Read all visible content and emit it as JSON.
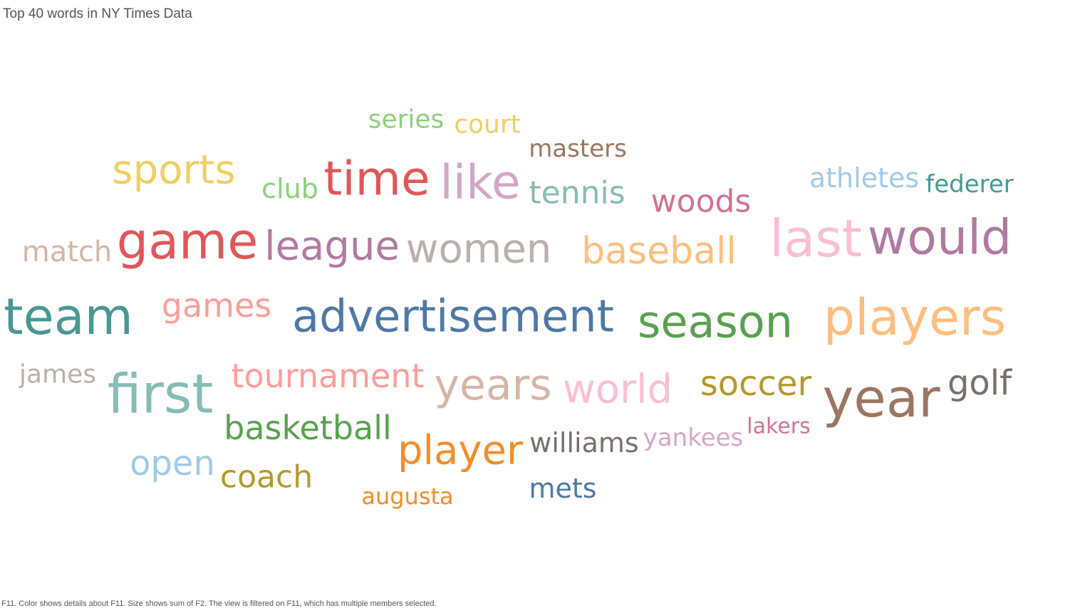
{
  "title": "Top 40 words in NY Times Data",
  "caption": "F11.  Color shows details about F11.  Size shows sum of F2. The view is filtered on F11, which has multiple members selected.",
  "chart_data": {
    "type": "wordcloud",
    "words": [
      {
        "text": "series",
        "size": 36,
        "color": "#8cd17d"
      },
      {
        "text": "court",
        "size": 36,
        "color": "#f1ce63"
      },
      {
        "text": "masters",
        "size": 34,
        "color": "#9d7660"
      },
      {
        "text": "sports",
        "size": 56,
        "color": "#f1ce63"
      },
      {
        "text": "club",
        "size": 38,
        "color": "#8cd17d"
      },
      {
        "text": "time",
        "size": 66,
        "color": "#e15759"
      },
      {
        "text": "like",
        "size": 66,
        "color": "#d4a6c8"
      },
      {
        "text": "tennis",
        "size": 44,
        "color": "#86bcb6"
      },
      {
        "text": "athletes",
        "size": 38,
        "color": "#a0cbe8"
      },
      {
        "text": "federer",
        "size": 34,
        "color": "#499894"
      },
      {
        "text": "woods",
        "size": 44,
        "color": "#d37295"
      },
      {
        "text": "match",
        "size": 40,
        "color": "#d7b5a6"
      },
      {
        "text": "game",
        "size": 70,
        "color": "#e15759"
      },
      {
        "text": "league",
        "size": 56,
        "color": "#b07aa1"
      },
      {
        "text": "women",
        "size": 56,
        "color": "#bab0ac"
      },
      {
        "text": "baseball",
        "size": 52,
        "color": "#ffbe7d"
      },
      {
        "text": "last",
        "size": 72,
        "color": "#fabfd2"
      },
      {
        "text": "would",
        "size": 68,
        "color": "#b07aa1"
      },
      {
        "text": "team",
        "size": 70,
        "color": "#499894"
      },
      {
        "text": "games",
        "size": 46,
        "color": "#ff9d9a"
      },
      {
        "text": "advertisement",
        "size": 62,
        "color": "#4e79a7"
      },
      {
        "text": "season",
        "size": 62,
        "color": "#59a14f"
      },
      {
        "text": "players",
        "size": 70,
        "color": "#ffbe7d"
      },
      {
        "text": "james",
        "size": 36,
        "color": "#bab0ac"
      },
      {
        "text": "first",
        "size": 76,
        "color": "#86bcb6"
      },
      {
        "text": "tournament",
        "size": 46,
        "color": "#ff9d9a"
      },
      {
        "text": "years",
        "size": 60,
        "color": "#d7b5a6"
      },
      {
        "text": "world",
        "size": 56,
        "color": "#fabfd2"
      },
      {
        "text": "soccer",
        "size": 48,
        "color": "#b6992d"
      },
      {
        "text": "year",
        "size": 74,
        "color": "#9d7660"
      },
      {
        "text": "golf",
        "size": 48,
        "color": "#79706e"
      },
      {
        "text": "basketball",
        "size": 46,
        "color": "#59a14f"
      },
      {
        "text": "player",
        "size": 56,
        "color": "#f28e2b"
      },
      {
        "text": "williams",
        "size": 38,
        "color": "#79706e"
      },
      {
        "text": "yankees",
        "size": 34,
        "color": "#d4a6c8"
      },
      {
        "text": "lakers",
        "size": 30,
        "color": "#d37295"
      },
      {
        "text": "open",
        "size": 48,
        "color": "#a0cbe8"
      },
      {
        "text": "coach",
        "size": 44,
        "color": "#b6992d"
      },
      {
        "text": "augusta",
        "size": 32,
        "color": "#f28e2b"
      },
      {
        "text": "mets",
        "size": 38,
        "color": "#4e79a7"
      }
    ]
  }
}
